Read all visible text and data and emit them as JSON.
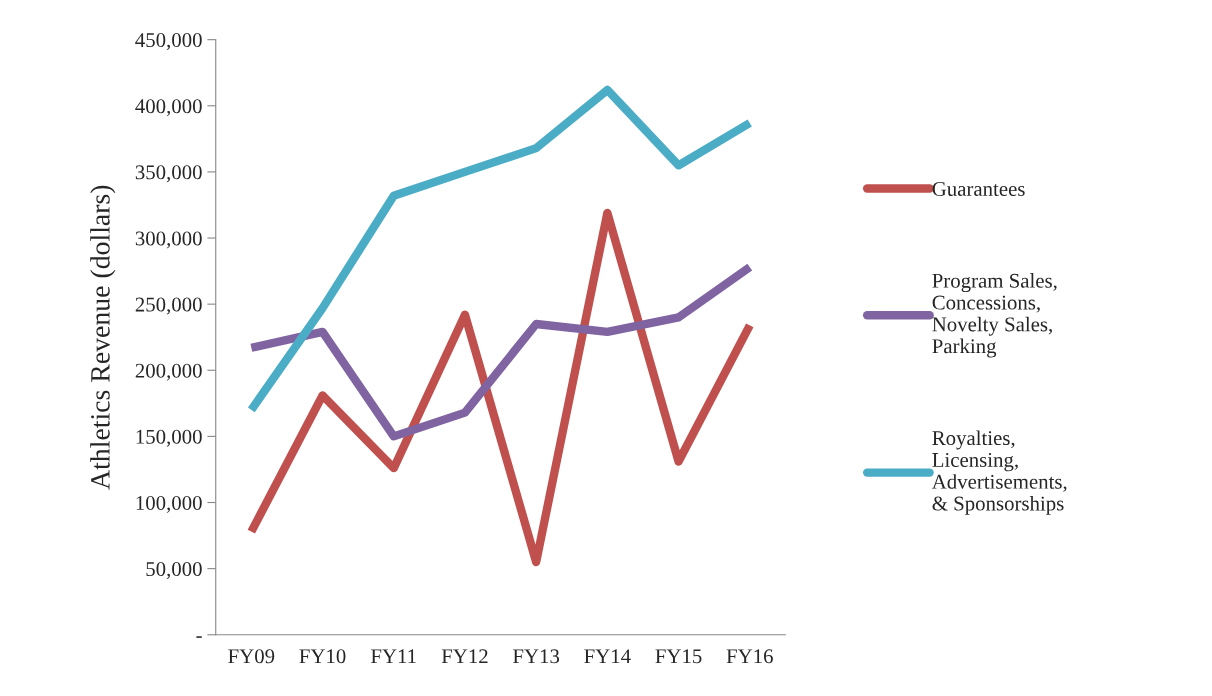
{
  "chart_data": {
    "type": "line",
    "ylabel": "Athletics Revenue (dollars)",
    "categories": [
      "FY09",
      "FY10",
      "FY11",
      "FY12",
      "FY13",
      "FY14",
      "FY15",
      "FY16"
    ],
    "series": [
      {
        "name": "Guarantees",
        "color": "#c0504d",
        "values": [
          78000,
          181000,
          126000,
          242000,
          55000,
          319000,
          131000,
          234000
        ]
      },
      {
        "name": "Program Sales,\nConcessions,\nNovelty Sales,\nParking",
        "color": "#8064a2",
        "values": [
          217000,
          229000,
          150000,
          168000,
          235000,
          229000,
          240000,
          278000
        ]
      },
      {
        "name": "Royalties,\nLicensing,\nAdvertisements,\n& Sponsorships",
        "color": "#4bacc6",
        "values": [
          170000,
          247000,
          332000,
          350000,
          368000,
          412000,
          355000,
          387000
        ]
      }
    ],
    "ylim": [
      0,
      450000
    ],
    "yticks": [
      {
        "value": 0,
        "label": "-"
      },
      {
        "value": 50000,
        "label": "50,000"
      },
      {
        "value": 100000,
        "label": "100,000"
      },
      {
        "value": 150000,
        "label": "150,000"
      },
      {
        "value": 200000,
        "label": "200,000"
      },
      {
        "value": 250000,
        "label": "250,000"
      },
      {
        "value": 300000,
        "label": "300,000"
      },
      {
        "value": 350000,
        "label": "350,000"
      },
      {
        "value": 400000,
        "label": "400,000"
      },
      {
        "value": 450000,
        "label": "450,000"
      }
    ],
    "grid": false,
    "legend": "right",
    "marker": "none",
    "line_style": "solid"
  }
}
